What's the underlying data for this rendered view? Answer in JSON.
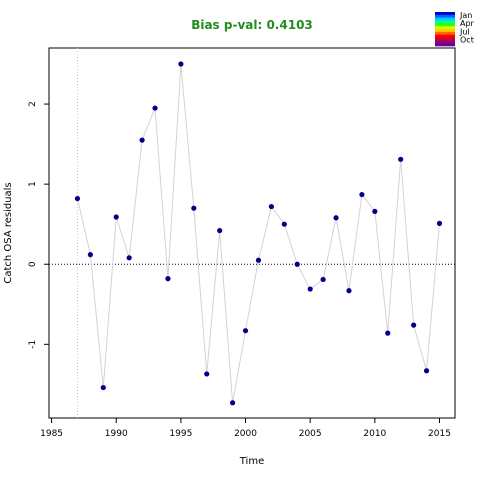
{
  "chart_data": {
    "type": "scatter",
    "title": "Bias p-val: 0.4103",
    "title_color": "#228B22",
    "xlabel": "Time",
    "ylabel": "Catch OSA residuals",
    "xlim": [
      1984.8,
      2016.2
    ],
    "ylim": [
      -1.92,
      2.7
    ],
    "xticks": [
      1985,
      1990,
      1995,
      2000,
      2005,
      2010,
      2015
    ],
    "yticks": [
      -1,
      0,
      1,
      2
    ],
    "reference_line_y": 0,
    "reference_line_x": 1987,
    "grid": false,
    "line_color": "#d3d3d3",
    "point_color": "#00008B",
    "legend_position": "top-right",
    "legend": {
      "labels": [
        "Jan",
        "Apr",
        "Jul",
        "Oct"
      ],
      "colors": [
        "#0000CC",
        "#0066FF",
        "#00CCFF",
        "#00FF99",
        "#33FF00",
        "#CCFF00",
        "#FFCC00",
        "#FF6600",
        "#FF0000",
        "#CC0033",
        "#990066",
        "#660099"
      ]
    },
    "series": [
      {
        "x": [
          1987,
          1988,
          1989,
          1990,
          1991,
          1992,
          1993,
          1994,
          1995,
          1996,
          1997,
          1998,
          1999,
          2000,
          2001,
          2002,
          2003,
          2004,
          2005,
          2006,
          2007,
          2008,
          2009,
          2010,
          2011,
          2012,
          2013,
          2014,
          2015
        ],
        "y": [
          0.82,
          0.12,
          -1.54,
          0.59,
          0.08,
          1.55,
          1.95,
          -0.18,
          2.5,
          0.7,
          -1.37,
          0.42,
          -1.73,
          -0.83,
          0.05,
          0.72,
          0.5,
          0.0,
          -0.31,
          -0.19,
          0.58,
          -0.33,
          0.87,
          0.66,
          -0.86,
          1.31,
          -0.76,
          -1.33,
          0.51
        ]
      }
    ]
  }
}
